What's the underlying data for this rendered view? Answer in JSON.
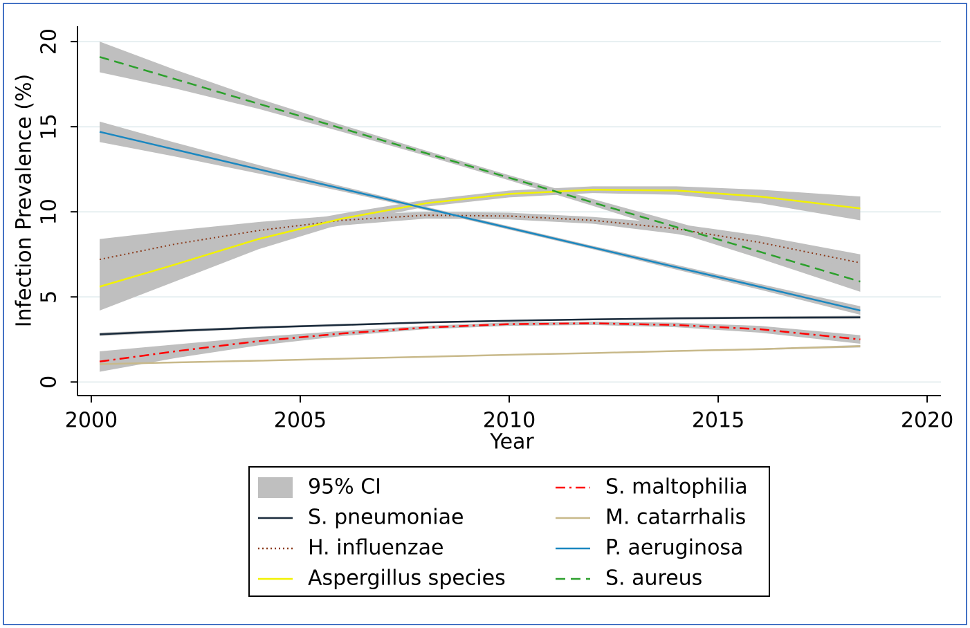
{
  "chart_data": {
    "type": "line",
    "x_label": "Year",
    "y_label": "Infection Prevalence (%)",
    "xlim": [
      1999.67,
      2020.33
    ],
    "ylim": [
      -0.8,
      20.9
    ],
    "xticks": [
      2000,
      2005,
      2010,
      2015,
      2020
    ],
    "yticks": [
      0,
      5,
      10,
      15,
      20
    ],
    "grid": true,
    "ci_label": "95% CI",
    "ci_color": "#bfbfbf",
    "x": [
      2000.2,
      2002,
      2004,
      2006,
      2008,
      2010,
      2012,
      2014,
      2016,
      2018.4
    ],
    "series": [
      {
        "name": "S. pneumoniae",
        "color": "#1a2b3c",
        "style": "solid",
        "values": [
          2.8,
          3.0,
          3.2,
          3.35,
          3.5,
          3.6,
          3.68,
          3.74,
          3.78,
          3.8
        ],
        "ci_lower": [
          2.7,
          2.92,
          3.13,
          3.29,
          3.45,
          3.55,
          3.63,
          3.68,
          3.71,
          3.7
        ],
        "ci_upper": [
          2.9,
          3.08,
          3.27,
          3.41,
          3.55,
          3.65,
          3.73,
          3.8,
          3.85,
          3.9
        ]
      },
      {
        "name": "H. influenzae",
        "color": "#8b3a1a",
        "style": "dotted",
        "values": [
          7.2,
          8.1,
          8.9,
          9.5,
          9.8,
          9.75,
          9.5,
          9.0,
          8.2,
          7.0
        ],
        "ci_lower": [
          6.0,
          7.3,
          8.4,
          9.2,
          9.6,
          9.55,
          9.3,
          8.7,
          7.8,
          6.5
        ],
        "ci_upper": [
          8.4,
          8.9,
          9.4,
          9.8,
          10.0,
          9.95,
          9.7,
          9.3,
          8.6,
          7.5
        ]
      },
      {
        "name": "Aspergillus species",
        "color": "#f2f200",
        "style": "solid",
        "values": [
          5.6,
          6.9,
          8.4,
          9.6,
          10.5,
          11.05,
          11.3,
          11.25,
          10.9,
          10.2
        ],
        "ci_lower": [
          4.2,
          5.9,
          7.8,
          9.3,
          10.3,
          10.85,
          11.1,
          11.0,
          10.5,
          9.5
        ],
        "ci_upper": [
          7.0,
          7.9,
          9.0,
          9.9,
          10.7,
          11.25,
          11.5,
          11.5,
          11.3,
          10.9
        ]
      },
      {
        "name": "S. maltophilia",
        "color": "#ff0000",
        "style": "dashdot",
        "values": [
          1.2,
          1.8,
          2.4,
          2.85,
          3.2,
          3.4,
          3.45,
          3.35,
          3.1,
          2.5
        ],
        "ci_lower": [
          0.6,
          1.4,
          2.15,
          2.7,
          3.1,
          3.3,
          3.35,
          3.22,
          2.9,
          2.25
        ],
        "ci_upper": [
          1.8,
          2.2,
          2.65,
          3.0,
          3.3,
          3.5,
          3.55,
          3.48,
          3.3,
          2.75
        ]
      },
      {
        "name": "M. catarrhalis",
        "color": "#c8b98a",
        "style": "solid",
        "values": [
          1.05,
          1.15,
          1.25,
          1.37,
          1.48,
          1.6,
          1.7,
          1.82,
          1.93,
          2.1
        ],
        "ci_lower": [
          1.0,
          1.11,
          1.22,
          1.34,
          1.45,
          1.57,
          1.67,
          1.78,
          1.88,
          2.03
        ],
        "ci_upper": [
          1.1,
          1.19,
          1.28,
          1.4,
          1.51,
          1.63,
          1.73,
          1.86,
          1.98,
          2.17
        ]
      },
      {
        "name": "P. aeruginosa",
        "color": "#1a87c0",
        "style": "solid",
        "values": [
          14.7,
          13.66,
          12.5,
          11.35,
          10.2,
          9.05,
          7.9,
          6.74,
          5.59,
          4.2
        ],
        "ci_lower": [
          14.1,
          13.25,
          12.25,
          11.2,
          10.1,
          8.95,
          7.8,
          6.6,
          5.42,
          3.95
        ],
        "ci_upper": [
          15.3,
          14.07,
          12.75,
          11.5,
          10.3,
          9.15,
          8.0,
          6.88,
          5.76,
          4.45
        ]
      },
      {
        "name": "S. aureus",
        "color": "#2ca02c",
        "style": "dashed",
        "values": [
          19.1,
          17.8,
          16.35,
          14.9,
          13.45,
          12.0,
          10.55,
          9.1,
          7.65,
          5.9
        ],
        "ci_lower": [
          18.2,
          17.25,
          16.05,
          14.7,
          13.3,
          11.85,
          10.35,
          8.8,
          7.25,
          5.3
        ],
        "ci_upper": [
          20.0,
          18.35,
          16.65,
          15.1,
          13.6,
          12.15,
          10.75,
          9.4,
          8.05,
          6.5
        ]
      }
    ]
  }
}
